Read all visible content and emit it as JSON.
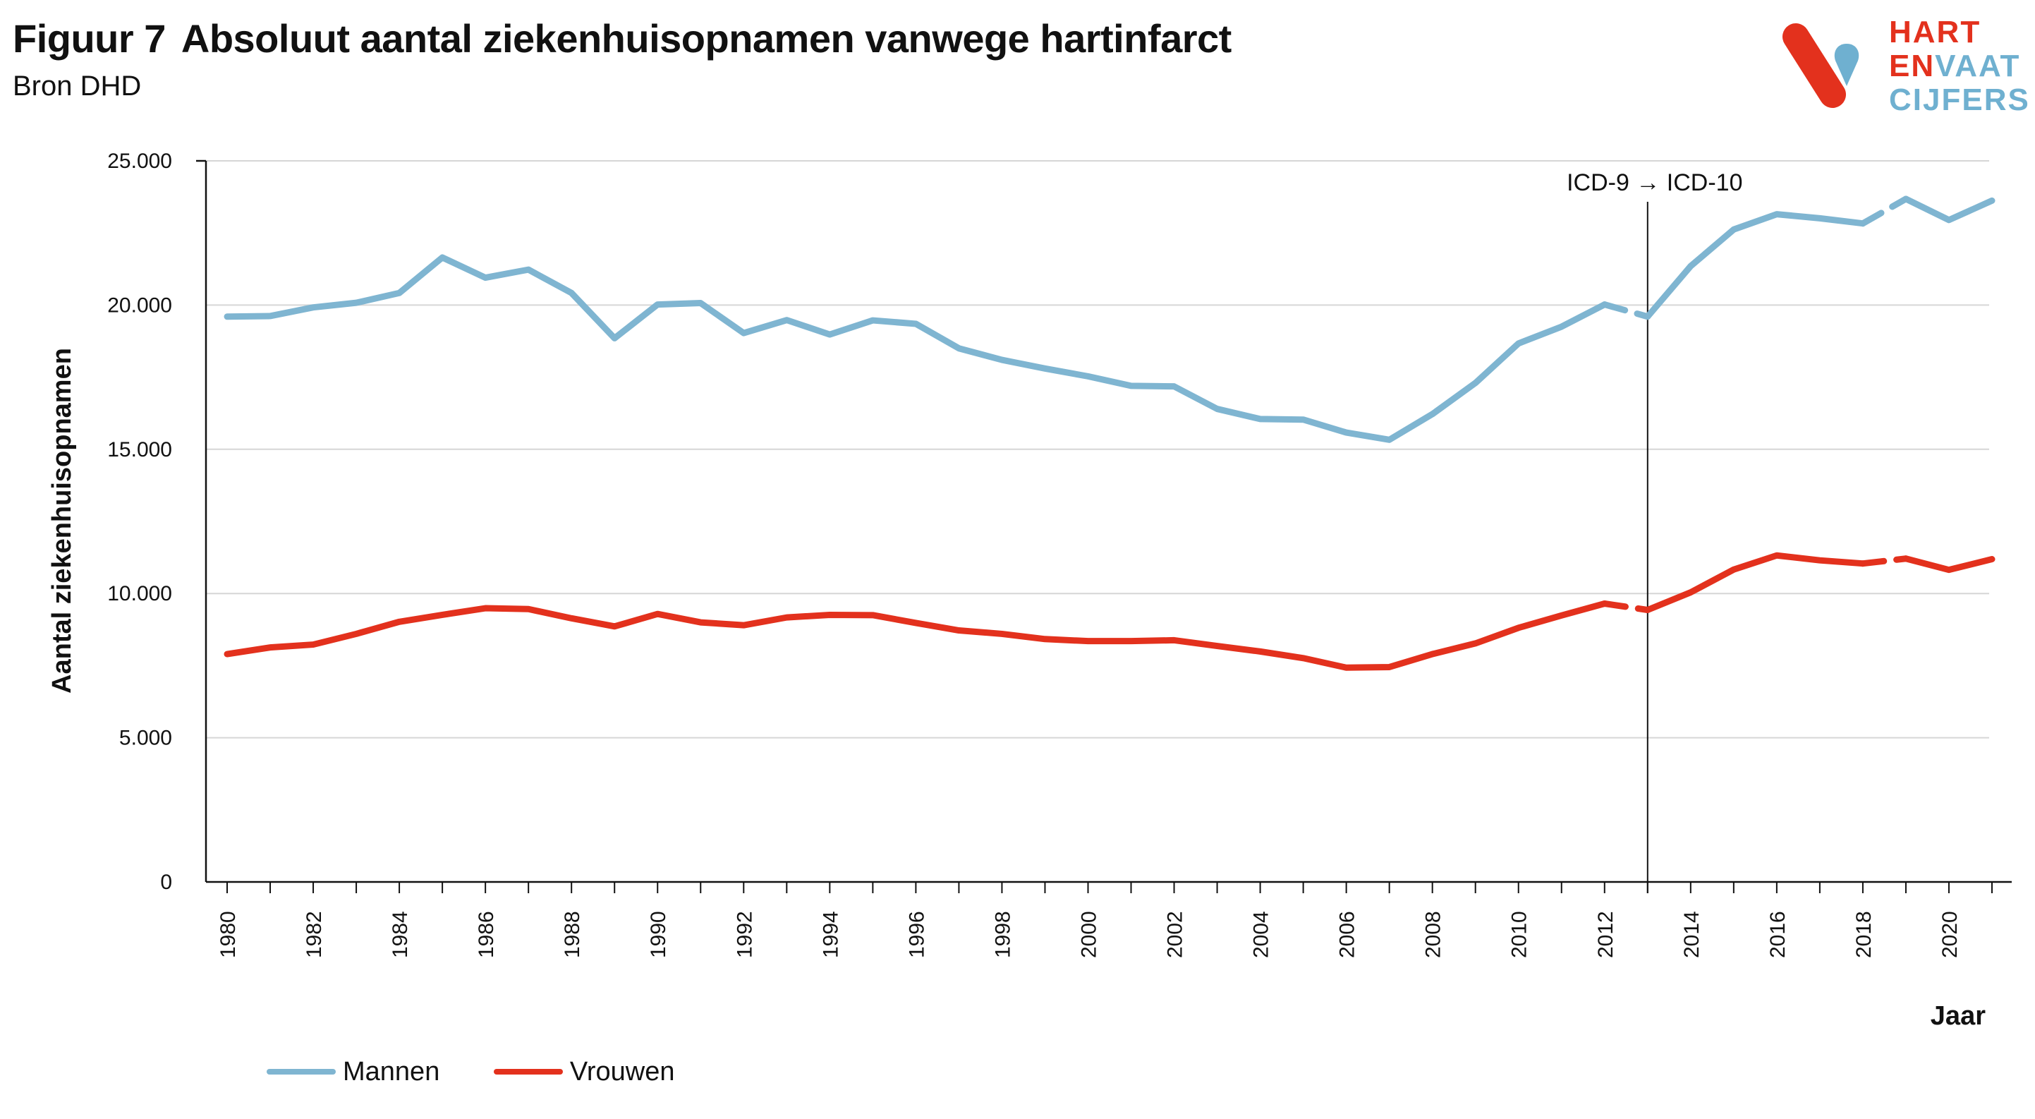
{
  "header": {
    "figure_label": "Figuur 7",
    "title": "Absoluut aantal ziekenhuisopnamen vanwege hartinfarct",
    "subtitle": "Bron DHD"
  },
  "logo": {
    "line1": "HART",
    "line2a": "EN",
    "line2b": "VAAT",
    "line3": "CIJFERS",
    "red": "#e3311d",
    "blue": "#6fb0d0"
  },
  "legend": {
    "items": [
      {
        "label": "Mannen",
        "color": "#7fb5d1"
      },
      {
        "label": "Vrouwen",
        "color": "#e3311d"
      }
    ]
  },
  "chart_data": {
    "type": "line",
    "title": "Absoluut aantal ziekenhuisopnamen vanwege hartinfarct",
    "subtitle": "Bron DHD",
    "xlabel": "Jaar",
    "ylabel": "Aantal ziekenhuisopnamen",
    "ylim": [
      0,
      25000
    ],
    "yticks": [
      0,
      5000,
      10000,
      15000,
      20000,
      25000
    ],
    "ytick_labels": [
      "0",
      "5.000",
      "10.000",
      "15.000",
      "20.000",
      "25.000"
    ],
    "xlim": [
      1980,
      2021
    ],
    "xticks": [
      1980,
      1982,
      1984,
      1986,
      1988,
      1990,
      1992,
      1994,
      1996,
      1998,
      2000,
      2002,
      2004,
      2006,
      2008,
      2010,
      2012,
      2014,
      2016,
      2018,
      2020
    ],
    "x": [
      1980,
      1981,
      1982,
      1983,
      1984,
      1985,
      1986,
      1987,
      1988,
      1989,
      1990,
      1991,
      1992,
      1993,
      1994,
      1995,
      1996,
      1997,
      1998,
      1999,
      2000,
      2001,
      2002,
      2003,
      2004,
      2005,
      2006,
      2007,
      2008,
      2009,
      2010,
      2011,
      2012,
      2013,
      2014,
      2015,
      2016,
      2017,
      2018,
      2019,
      2020,
      2021
    ],
    "series": [
      {
        "name": "Mannen",
        "color": "#7fb5d1",
        "values": [
          19600,
          19620,
          19920,
          20080,
          20420,
          21650,
          20950,
          21230,
          20420,
          18850,
          20020,
          20070,
          19030,
          19480,
          18980,
          19470,
          19350,
          18500,
          18100,
          17800,
          17530,
          17200,
          17180,
          16400,
          16050,
          16030,
          15580,
          15330,
          16220,
          17300,
          18670,
          19250,
          20020,
          19600,
          21350,
          22620,
          23150,
          23010,
          22830,
          23680,
          22950,
          23620
        ],
        "dashed_segments": [
          [
            2012,
            2013
          ],
          [
            2018,
            2019
          ]
        ]
      },
      {
        "name": "Vrouwen",
        "color": "#e3311d",
        "values": [
          7900,
          8130,
          8230,
          8600,
          9020,
          9260,
          9490,
          9460,
          9140,
          8860,
          9290,
          9000,
          8900,
          9170,
          9260,
          9250,
          8980,
          8720,
          8600,
          8420,
          8350,
          8350,
          8380,
          8180,
          7990,
          7760,
          7430,
          7450,
          7900,
          8270,
          8810,
          9240,
          9650,
          9430,
          10040,
          10830,
          11320,
          11150,
          11040,
          11210,
          10820,
          11190
        ],
        "dashed_segments": [
          [
            2012,
            2013
          ],
          [
            2018,
            2019
          ]
        ]
      }
    ],
    "vertical_marker": {
      "x": 2013,
      "label": "ICD-9 → ICD-10"
    },
    "grid": "horizontal",
    "legend_position": "bottom-left"
  }
}
